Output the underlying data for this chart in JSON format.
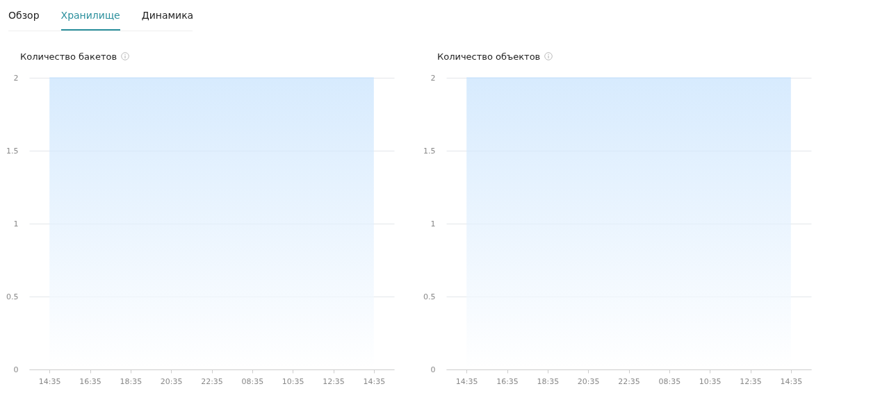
{
  "chart_data": [
    {
      "type": "other",
      "annotations": [
        "Обзор",
        "Хранилище",
        "Динамика"
      ]
    },
    {
      "type": "area",
      "title": "Количество бакетов",
      "categories": [
        "14:35",
        "16:35",
        "18:35",
        "20:35",
        "22:35",
        "08:35",
        "10:35",
        "12:35",
        "14:35"
      ],
      "series": [
        {
          "color": "#c6e2fd",
          "values": [
            2,
            2,
            2,
            2,
            2,
            2,
            2,
            2,
            2
          ]
        }
      ],
      "ylim": [
        0,
        2
      ],
      "yticks": [
        0,
        0.5,
        1,
        1.5,
        2
      ],
      "grid": "y"
    },
    {
      "type": "area",
      "title": "Количество объектов",
      "categories": [
        "14:35",
        "16:35",
        "18:35",
        "20:35",
        "22:35",
        "08:35",
        "10:35",
        "12:35",
        "14:35"
      ],
      "series": [
        {
          "color": "#c6e2fd",
          "values": [
            2,
            2,
            2,
            2,
            2,
            2,
            2,
            2,
            2
          ]
        }
      ],
      "ylim": [
        0,
        2
      ],
      "yticks": [
        0,
        0.5,
        1,
        1.5,
        2
      ],
      "grid": "y"
    }
  ]
}
